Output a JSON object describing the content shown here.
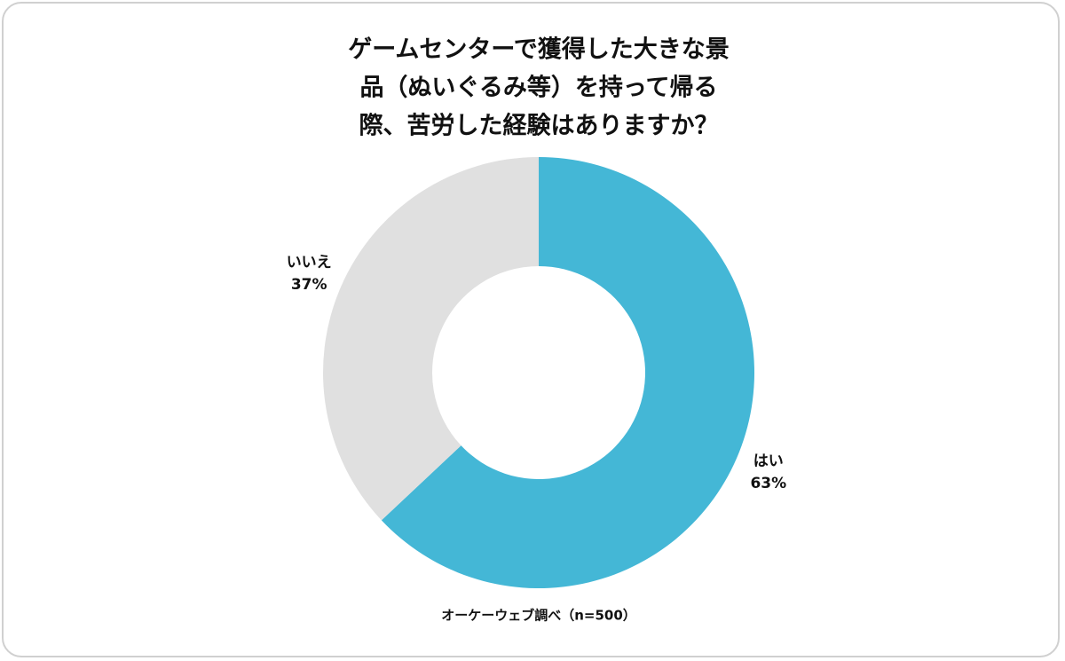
{
  "chart_data": {
    "type": "donut",
    "title": [
      "ゲームセンターで獲得した大きな景",
      "品（ぬいぐるみ等）を持って帰る",
      "際、苦労した経験はありますか？"
    ],
    "categories": [
      "はい",
      "いいえ"
    ],
    "values": [
      63,
      37
    ],
    "value_labels": [
      "63%",
      "37%"
    ],
    "colors": [
      "#44b7d6",
      "#e0e0e0"
    ],
    "source": "オーケーウェブ調べ（n=500）"
  }
}
